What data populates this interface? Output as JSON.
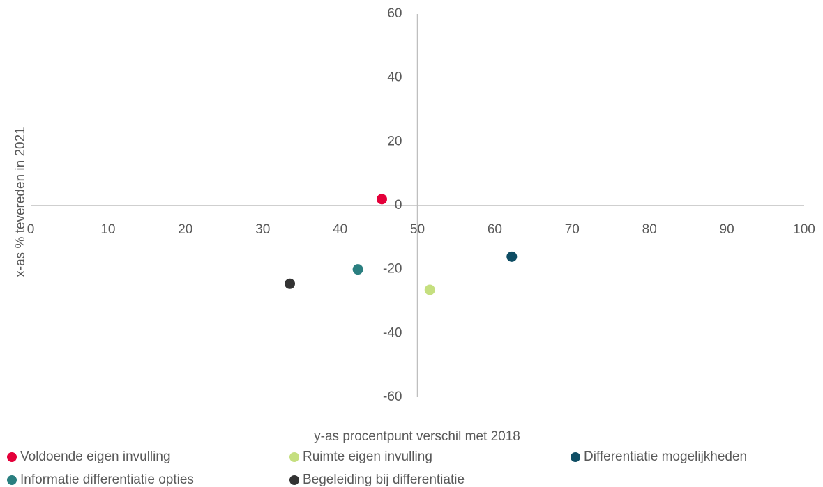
{
  "chart_data": {
    "type": "scatter",
    "x_label": "y-as procentpunt verschil met 2018",
    "y_label": "x-as % tevereden in 2021",
    "xlim": [
      0,
      100
    ],
    "xticks": [
      0,
      10,
      20,
      30,
      40,
      50,
      60,
      70,
      80,
      90,
      100
    ],
    "ylim": [
      -60,
      60
    ],
    "yticks": [
      -60,
      -40,
      -20,
      0,
      20,
      40,
      60
    ],
    "legend": "bottom",
    "series": [
      {
        "name": "Voldoende eigen invulling",
        "color": "#e4003a",
        "x": [
          45.4
        ],
        "values": [
          2
        ]
      },
      {
        "name": "Ruimte eigen invulling",
        "color": "#c5df7f",
        "x": [
          51.6
        ],
        "values": [
          -26.4
        ]
      },
      {
        "name": "Differentiatie mogelijkheden",
        "color": "#0e4d64",
        "x": [
          62.2
        ],
        "values": [
          -16
        ]
      },
      {
        "name": "Informatie differentiatie opties",
        "color": "#2a7f80",
        "x": [
          42.3
        ],
        "values": [
          -20
        ]
      },
      {
        "name": "Begeleiding bij differentiatie",
        "color": "#333333",
        "x": [
          33.5
        ],
        "values": [
          -24.5
        ]
      }
    ]
  }
}
